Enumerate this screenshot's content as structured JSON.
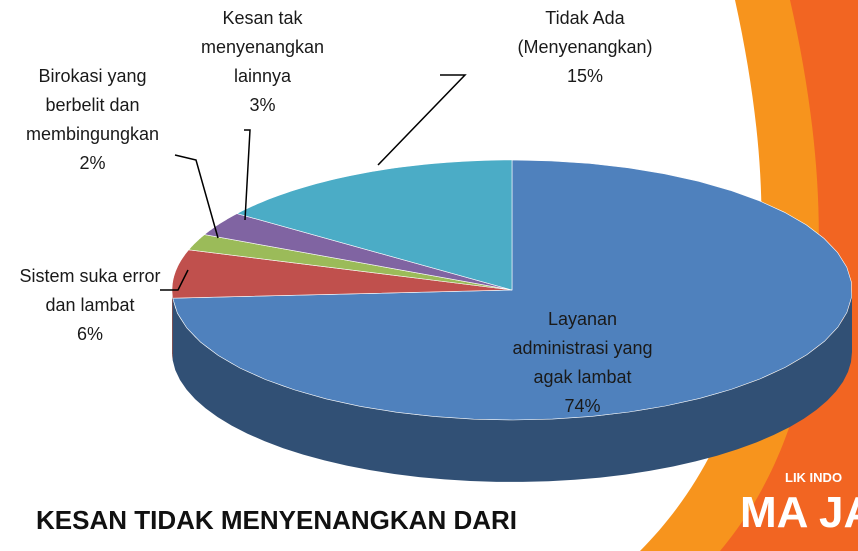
{
  "chart_data": {
    "type": "pie3d",
    "title": "KESAN TIDAK MENYENANGKAN DARI",
    "categories": [
      "Layanan administrasi yang agak lambat",
      "Sistem suka error dan lambat",
      "Birokasi yang berbelit dan membingungkan",
      "Kesan tak menyenangkan lainnya",
      "Tidak Ada (Menyenangkan)"
    ],
    "values": [
      74,
      6,
      2,
      3,
      15
    ],
    "value_labels": [
      "74%",
      "6%",
      "2%",
      "3%",
      "15%"
    ],
    "colors": [
      "#4f81bd",
      "#c0504d",
      "#9bbb59",
      "#8064a2",
      "#4bacc6"
    ],
    "background_text": [
      "LIK INDO",
      "MA JAY"
    ]
  }
}
